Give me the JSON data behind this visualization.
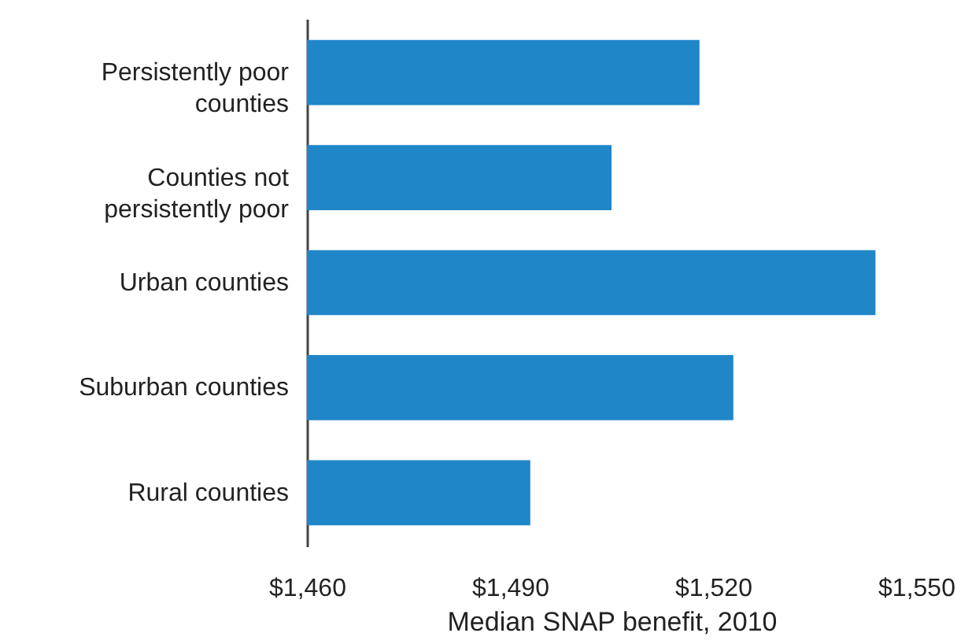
{
  "chart_data": {
    "type": "bar",
    "orientation": "horizontal",
    "xlabel": "Median SNAP benefit, 2010",
    "categories": [
      "Persistently poor counties",
      "Counties not persistently poor",
      "Urban counties",
      "Suburban counties",
      "Rural counties"
    ],
    "values": [
      1518,
      1505,
      1544,
      1523,
      1493
    ],
    "color": "#1f86c8",
    "xlim": [
      1460,
      1550
    ],
    "xticks": [
      {
        "value": 1460,
        "label": "$1,460"
      },
      {
        "value": 1490,
        "label": "$1,490"
      },
      {
        "value": 1520,
        "label": "$1,520"
      },
      {
        "value": 1550,
        "label": "$1,550"
      }
    ],
    "grid": false
  }
}
